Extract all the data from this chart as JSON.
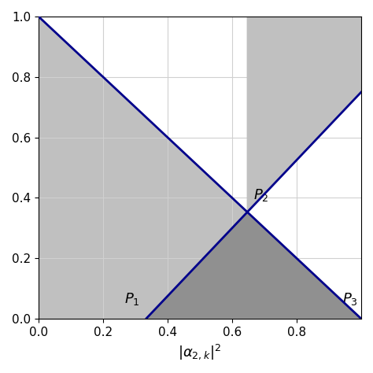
{
  "xlim": [
    0,
    1.0
  ],
  "ylim": [
    0,
    1.0
  ],
  "xticks": [
    0,
    0.2,
    0.4,
    0.6,
    0.8
  ],
  "yticks": [
    0,
    0.2,
    0.4,
    0.6,
    0.8,
    1.0
  ],
  "xlabel": "$|\\alpha_{2,k}|^2$",
  "line1_x0": 0.0,
  "line1_y0": 1.0,
  "line1_x1": 1.0,
  "line1_y1": 0.0,
  "line2_x0": 0.3333333333,
  "line2_y0": 0.0,
  "line2_slope": 1.125,
  "line_color": "#00008B",
  "line_width": 2.0,
  "light_gray": "#c0c0c0",
  "dark_gray": "#909090",
  "white": "#ffffff",
  "background_color": "#ffffff",
  "grid_color": "#d0d0d0",
  "grid_linewidth": 0.8,
  "P1_label": "$P_1$",
  "P2_label": "$P_2$",
  "P3_label": "$P_3$",
  "label_fontsize": 13,
  "xlabel_fontsize": 13,
  "tick_fontsize": 11
}
